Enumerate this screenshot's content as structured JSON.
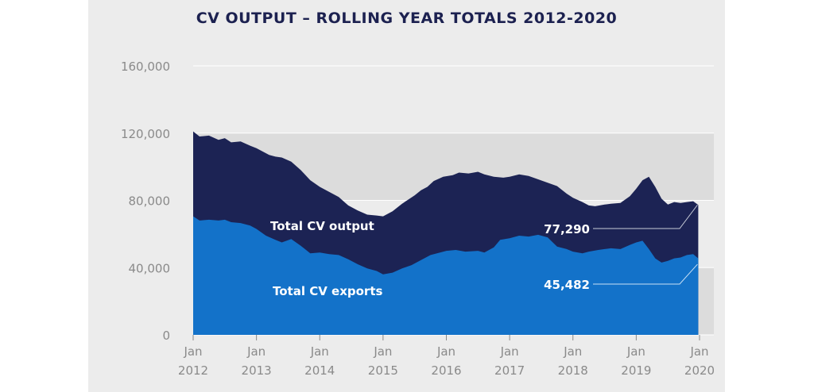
{
  "chart_data": {
    "type": "area",
    "title": "CV OUTPUT – ROLLING YEAR TOTALS 2012-2020",
    "xlabel": "",
    "ylabel": "",
    "ylim": [
      0,
      160000
    ],
    "yticks": [
      {
        "value": 0,
        "label": "0"
      },
      {
        "value": 40000,
        "label": "40,000"
      },
      {
        "value": 80000,
        "label": "80,000"
      },
      {
        "value": 120000,
        "label": "120,000"
      },
      {
        "value": 160000,
        "label": "160,000"
      }
    ],
    "xlim": [
      2012,
      2020
    ],
    "xticks": [
      {
        "value": 2012,
        "month": "Jan",
        "year": "2012"
      },
      {
        "value": 2013,
        "month": "Jan",
        "year": "2013"
      },
      {
        "value": 2014,
        "month": "Jan",
        "year": "2014"
      },
      {
        "value": 2015,
        "month": "Jan",
        "year": "2015"
      },
      {
        "value": 2016,
        "month": "Jan",
        "year": "2016"
      },
      {
        "value": 2017,
        "month": "Jan",
        "year": "2017"
      },
      {
        "value": 2018,
        "month": "Jan",
        "year": "2018"
      },
      {
        "value": 2019,
        "month": "Jan",
        "year": "2019"
      },
      {
        "value": 2020,
        "month": "Jan",
        "year": "2020"
      }
    ],
    "series": [
      {
        "name": "Total CV output",
        "color": "#1c2354",
        "points": [
          [
            2012.0,
            121000
          ],
          [
            2012.1,
            118000
          ],
          [
            2012.25,
            118500
          ],
          [
            2012.4,
            116000
          ],
          [
            2012.5,
            117000
          ],
          [
            2012.6,
            114500
          ],
          [
            2012.75,
            115000
          ],
          [
            2012.9,
            112500
          ],
          [
            2013.0,
            111000
          ],
          [
            2013.2,
            107000
          ],
          [
            2013.3,
            106000
          ],
          [
            2013.4,
            105500
          ],
          [
            2013.55,
            103000
          ],
          [
            2013.7,
            98000
          ],
          [
            2013.85,
            92000
          ],
          [
            2014.0,
            88000
          ],
          [
            2014.15,
            85000
          ],
          [
            2014.3,
            82000
          ],
          [
            2014.45,
            77000
          ],
          [
            2014.6,
            74000
          ],
          [
            2014.75,
            71500
          ],
          [
            2014.9,
            71000
          ],
          [
            2015.0,
            70500
          ],
          [
            2015.15,
            73500
          ],
          [
            2015.3,
            78000
          ],
          [
            2015.5,
            83000
          ],
          [
            2015.6,
            86000
          ],
          [
            2015.7,
            88000
          ],
          [
            2015.8,
            91500
          ],
          [
            2015.95,
            94000
          ],
          [
            2016.1,
            95000
          ],
          [
            2016.2,
            96500
          ],
          [
            2016.35,
            96000
          ],
          [
            2016.5,
            97000
          ],
          [
            2016.6,
            95500
          ],
          [
            2016.75,
            94000
          ],
          [
            2016.9,
            93500
          ],
          [
            2017.0,
            94000
          ],
          [
            2017.15,
            95500
          ],
          [
            2017.3,
            94500
          ],
          [
            2017.45,
            92500
          ],
          [
            2017.6,
            90500
          ],
          [
            2017.75,
            88500
          ],
          [
            2017.9,
            84000
          ],
          [
            2018.0,
            81500
          ],
          [
            2018.15,
            79000
          ],
          [
            2018.25,
            77000
          ],
          [
            2018.35,
            76500
          ],
          [
            2018.5,
            77500
          ],
          [
            2018.6,
            78000
          ],
          [
            2018.75,
            78500
          ],
          [
            2018.9,
            82500
          ],
          [
            2019.0,
            87000
          ],
          [
            2019.1,
            92000
          ],
          [
            2019.2,
            94000
          ],
          [
            2019.3,
            88000
          ],
          [
            2019.4,
            81000
          ],
          [
            2019.5,
            77500
          ],
          [
            2019.6,
            79000
          ],
          [
            2019.7,
            78500
          ],
          [
            2019.8,
            79000
          ],
          [
            2019.9,
            79500
          ],
          [
            2019.98,
            77290
          ]
        ]
      },
      {
        "name": "Total CV exports",
        "color": "#1372c9",
        "points": [
          [
            2012.0,
            70500
          ],
          [
            2012.1,
            68000
          ],
          [
            2012.25,
            68500
          ],
          [
            2012.4,
            68000
          ],
          [
            2012.5,
            68500
          ],
          [
            2012.6,
            67000
          ],
          [
            2012.75,
            66500
          ],
          [
            2012.9,
            65000
          ],
          [
            2013.0,
            63000
          ],
          [
            2013.15,
            59000
          ],
          [
            2013.3,
            56500
          ],
          [
            2013.4,
            55000
          ],
          [
            2013.55,
            57000
          ],
          [
            2013.7,
            53000
          ],
          [
            2013.85,
            48500
          ],
          [
            2014.0,
            49000
          ],
          [
            2014.15,
            48000
          ],
          [
            2014.3,
            47500
          ],
          [
            2014.45,
            45000
          ],
          [
            2014.6,
            42000
          ],
          [
            2014.75,
            39500
          ],
          [
            2014.9,
            38000
          ],
          [
            2015.0,
            36000
          ],
          [
            2015.15,
            37000
          ],
          [
            2015.3,
            39500
          ],
          [
            2015.45,
            41500
          ],
          [
            2015.6,
            44500
          ],
          [
            2015.75,
            47500
          ],
          [
            2015.9,
            49000
          ],
          [
            2016.0,
            50000
          ],
          [
            2016.15,
            50500
          ],
          [
            2016.3,
            49500
          ],
          [
            2016.5,
            50000
          ],
          [
            2016.6,
            49000
          ],
          [
            2016.75,
            52000
          ],
          [
            2016.85,
            56500
          ],
          [
            2017.0,
            57500
          ],
          [
            2017.15,
            59000
          ],
          [
            2017.3,
            58500
          ],
          [
            2017.45,
            59500
          ],
          [
            2017.6,
            58000
          ],
          [
            2017.75,
            52500
          ],
          [
            2017.9,
            51000
          ],
          [
            2018.0,
            49500
          ],
          [
            2018.15,
            48500
          ],
          [
            2018.25,
            49500
          ],
          [
            2018.4,
            50500
          ],
          [
            2018.5,
            51000
          ],
          [
            2018.6,
            51500
          ],
          [
            2018.75,
            51000
          ],
          [
            2018.9,
            53500
          ],
          [
            2019.0,
            55000
          ],
          [
            2019.1,
            56000
          ],
          [
            2019.2,
            51000
          ],
          [
            2019.3,
            45500
          ],
          [
            2019.4,
            43000
          ],
          [
            2019.5,
            44000
          ],
          [
            2019.6,
            45500
          ],
          [
            2019.7,
            46000
          ],
          [
            2019.8,
            47500
          ],
          [
            2019.9,
            48000
          ],
          [
            2019.98,
            45482
          ]
        ]
      }
    ],
    "annotations": [
      {
        "text": "Total CV output",
        "series": 0
      },
      {
        "text": "Total CV exports",
        "series": 1
      },
      {
        "text": "77,290",
        "series": 0,
        "value": 77290
      },
      {
        "text": "45,482",
        "series": 1,
        "value": 45482
      }
    ],
    "colors": {
      "background": "#ececec",
      "grid_band": "#dcdcdc",
      "title": "#1c2150",
      "tick": "#8a8a8a"
    }
  }
}
